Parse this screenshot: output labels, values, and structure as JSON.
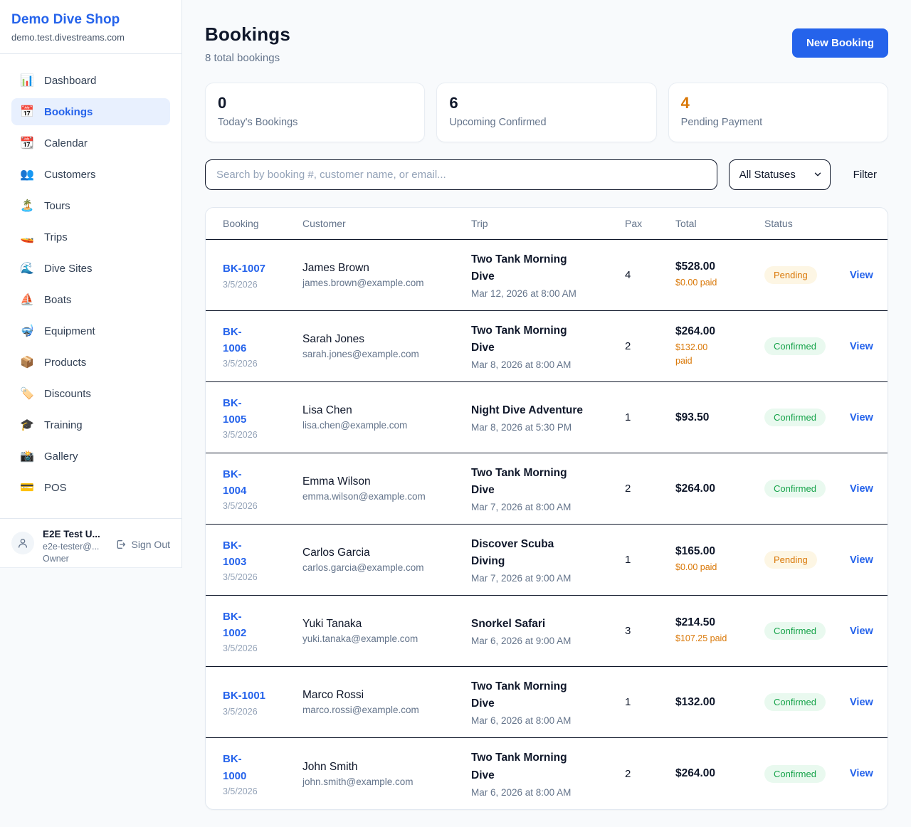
{
  "colors": {
    "accent_blue": "#2563eb",
    "orange": "#d97706",
    "green": "#16a34a",
    "pending_bg": "#fdf6e4",
    "confirmed_bg": "#e9f9ef",
    "dark_text": "#0f172a",
    "muted_text": "#64748b"
  },
  "sidebar": {
    "title": "Demo Dive Shop",
    "domain": "demo.test.divestreams.com",
    "items": [
      {
        "name": "dashboard",
        "icon": "📊",
        "label": "Dashboard",
        "active": false
      },
      {
        "name": "bookings",
        "icon": "📅",
        "label": "Bookings",
        "active": true
      },
      {
        "name": "calendar",
        "icon": "📆",
        "label": "Calendar",
        "active": false
      },
      {
        "name": "customers",
        "icon": "👥",
        "label": "Customers",
        "active": false
      },
      {
        "name": "tours",
        "icon": "🏝️",
        "label": "Tours",
        "active": false
      },
      {
        "name": "trips",
        "icon": "🚤",
        "label": "Trips",
        "active": false
      },
      {
        "name": "dive-sites",
        "icon": "🌊",
        "label": "Dive Sites",
        "active": false
      },
      {
        "name": "boats",
        "icon": "⛵",
        "label": "Boats",
        "active": false
      },
      {
        "name": "equipment",
        "icon": "🤿",
        "label": "Equipment",
        "active": false
      },
      {
        "name": "products",
        "icon": "📦",
        "label": "Products",
        "active": false
      },
      {
        "name": "discounts",
        "icon": "🏷️",
        "label": "Discounts",
        "active": false
      },
      {
        "name": "training",
        "icon": "🎓",
        "label": "Training",
        "active": false
      },
      {
        "name": "gallery",
        "icon": "📸",
        "label": "Gallery",
        "active": false
      },
      {
        "name": "pos",
        "icon": "💳",
        "label": "POS",
        "active": false
      }
    ],
    "user": {
      "name": "E2E Test U...",
      "email": "e2e-tester@...",
      "role": "Owner",
      "signout_label": "Sign Out"
    }
  },
  "header": {
    "title": "Bookings",
    "subtitle": "8 total bookings",
    "new_booking_label": "New Booking"
  },
  "stats": [
    {
      "value": "0",
      "label": "Today's Bookings",
      "accent": "dark"
    },
    {
      "value": "6",
      "label": "Upcoming Confirmed",
      "accent": "dark"
    },
    {
      "value": "4",
      "label": "Pending Payment",
      "accent": "orange"
    }
  ],
  "filters": {
    "search_placeholder": "Search by booking #, customer name, or email...",
    "status_selected": "All Statuses",
    "filter_label": "Filter"
  },
  "table": {
    "columns": [
      "Booking",
      "Customer",
      "Trip",
      "Pax",
      "Total",
      "Status"
    ],
    "rows": [
      {
        "booking": "BK-1007",
        "date": "3/5/2026",
        "customer": "James Brown",
        "email": "james.brown@example.com",
        "trip": "Two Tank Morning\nDive",
        "trip_datetime": "Mar 12, 2026 at 8:00 AM",
        "pax": "4",
        "total": "$528.00",
        "paid": "$0.00 paid",
        "status": "Pending",
        "view_label": "View"
      },
      {
        "booking": "BK-\n1006",
        "date": "3/5/2026",
        "customer": "Sarah Jones",
        "email": "sarah.jones@example.com",
        "trip": "Two Tank Morning\nDive",
        "trip_datetime": "Mar 8, 2026 at 8:00 AM",
        "pax": "2",
        "total": "$264.00",
        "paid": "$132.00\npaid",
        "status": "Confirmed",
        "view_label": "View"
      },
      {
        "booking": "BK-\n1005",
        "date": "3/5/2026",
        "customer": "Lisa Chen",
        "email": "lisa.chen@example.com",
        "trip": "Night Dive Adventure",
        "trip_datetime": "Mar 8, 2026 at 5:30 PM",
        "pax": "1",
        "total": "$93.50",
        "paid": "",
        "status": "Confirmed",
        "view_label": "View"
      },
      {
        "booking": "BK-\n1004",
        "date": "3/5/2026",
        "customer": "Emma Wilson",
        "email": "emma.wilson@example.com",
        "trip": "Two Tank Morning\nDive",
        "trip_datetime": "Mar 7, 2026 at 8:00 AM",
        "pax": "2",
        "total": "$264.00",
        "paid": "",
        "status": "Confirmed",
        "view_label": "View"
      },
      {
        "booking": "BK-\n1003",
        "date": "3/5/2026",
        "customer": "Carlos Garcia",
        "email": "carlos.garcia@example.com",
        "trip": "Discover Scuba\nDiving",
        "trip_datetime": "Mar 7, 2026 at 9:00 AM",
        "pax": "1",
        "total": "$165.00",
        "paid": "$0.00 paid",
        "status": "Pending",
        "view_label": "View"
      },
      {
        "booking": "BK-\n1002",
        "date": "3/5/2026",
        "customer": "Yuki Tanaka",
        "email": "yuki.tanaka@example.com",
        "trip": "Snorkel Safari",
        "trip_datetime": "Mar 6, 2026 at 9:00 AM",
        "pax": "3",
        "total": "$214.50",
        "paid": "$107.25 paid",
        "status": "Confirmed",
        "view_label": "View"
      },
      {
        "booking": "BK-1001",
        "date": "3/5/2026",
        "customer": "Marco Rossi",
        "email": "marco.rossi@example.com",
        "trip": "Two Tank Morning\nDive",
        "trip_datetime": "Mar 6, 2026 at 8:00 AM",
        "pax": "1",
        "total": "$132.00",
        "paid": "",
        "status": "Confirmed",
        "view_label": "View"
      },
      {
        "booking": "BK-\n1000",
        "date": "3/5/2026",
        "customer": "John Smith",
        "email": "john.smith@example.com",
        "trip": "Two Tank Morning\nDive",
        "trip_datetime": "Mar 6, 2026 at 8:00 AM",
        "pax": "2",
        "total": "$264.00",
        "paid": "",
        "status": "Confirmed",
        "view_label": "View"
      }
    ]
  }
}
